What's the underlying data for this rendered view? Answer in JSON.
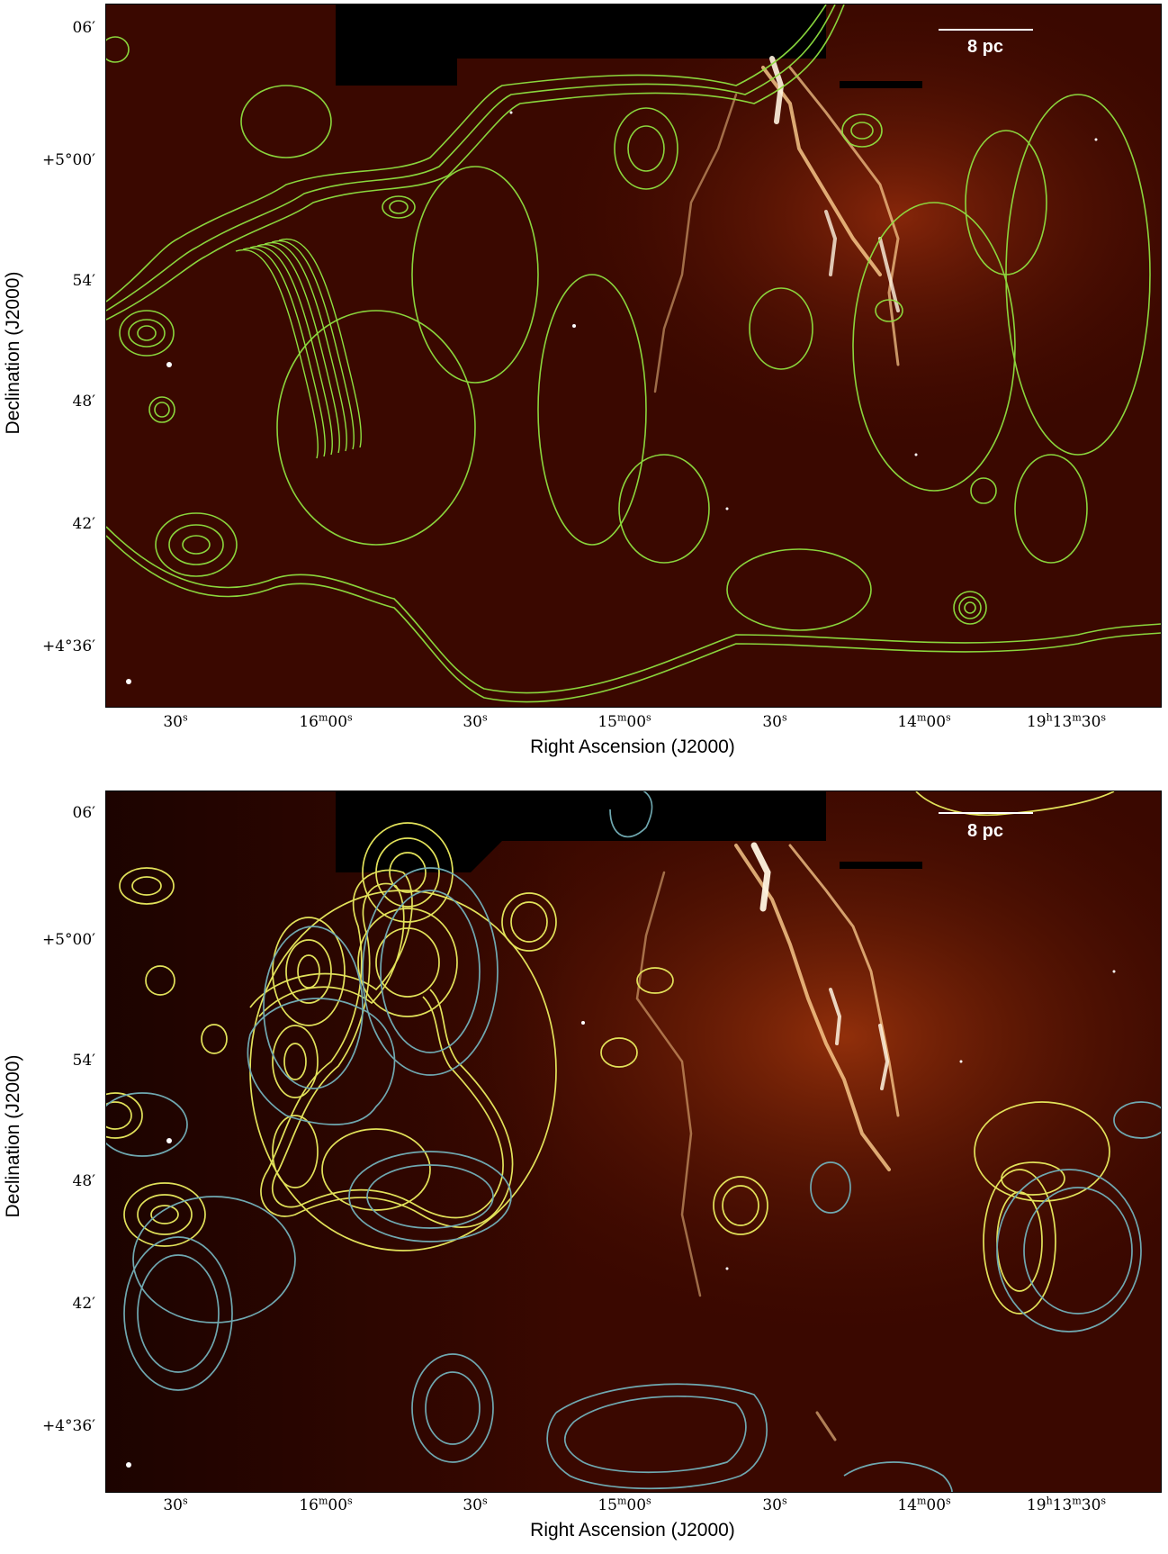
{
  "panels": [
    {
      "id": "top",
      "scale_bar": "8 pc",
      "xlabel": "Right Ascension (J2000)",
      "ylabel": "Declination (J2000)",
      "yticks": [
        "06′",
        "+5°00′",
        "54′",
        "48′",
        "42′",
        "+4°36′"
      ],
      "xticks": [
        "30s",
        "16m00s",
        "30s",
        "15m00s",
        "30s",
        "14m00s",
        "19h13m30s"
      ],
      "contour_color": "#8fe040"
    },
    {
      "id": "bottom",
      "scale_bar": "8 pc",
      "xlabel": "Right Ascension (J2000)",
      "ylabel": "Declination (J2000)",
      "yticks": [
        "06′",
        "+5°00′",
        "54′",
        "48′",
        "42′",
        "+4°36′"
      ],
      "xticks": [
        "30s",
        "16m00s",
        "30s",
        "15m00s",
        "30s",
        "14m00s",
        "19h13m30s"
      ],
      "contour_colors": [
        "#e2e25a",
        "#6fa8b0"
      ]
    }
  ],
  "colors": {
    "background_emission": "#3a0800",
    "filament": "#ffd9a0",
    "masked_region": "#000000"
  }
}
